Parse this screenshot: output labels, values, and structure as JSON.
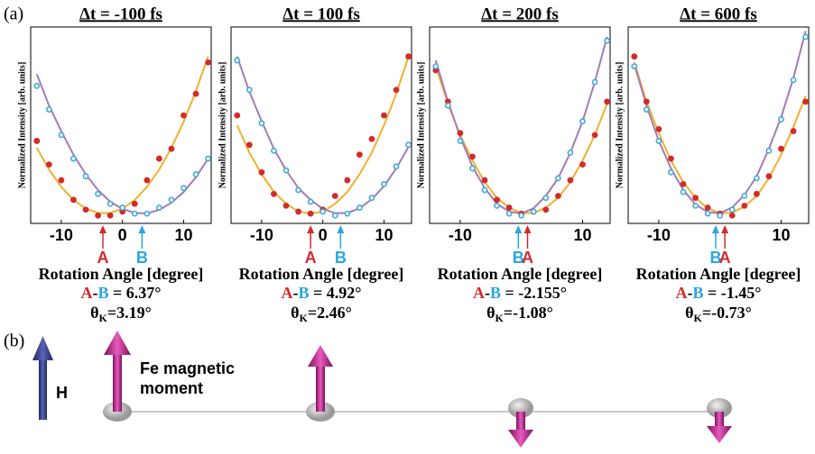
{
  "panel_label": "(a)",
  "chart_data": [
    {
      "type": "scatter",
      "title": "Δt = -100 fs",
      "x_label": "Rotation Angle [degree]",
      "y_label": "Normalized Intensity [arb. units]",
      "xlim": [
        -15,
        14.5
      ],
      "ylim": [
        0,
        1
      ],
      "xticks": [
        -10,
        0,
        10
      ],
      "x": [
        -14,
        -12,
        -10,
        -8,
        -6,
        -4,
        -2,
        0,
        2,
        4,
        6,
        8,
        10,
        12,
        14
      ],
      "series": [
        {
          "style": "line",
          "color": "#f0b030",
          "values": [
            0.385,
            0.274,
            0.186,
            0.119,
            0.075,
            0.053,
            0.053,
            0.075,
            0.119,
            0.186,
            0.274,
            0.385,
            0.518,
            0.673,
            0.85
          ]
        },
        {
          "style": "line",
          "color": "#a57bb5",
          "values": [
            0.76,
            0.6,
            0.47,
            0.35,
            0.25,
            0.17,
            0.11,
            0.074,
            0.053,
            0.051,
            0.069,
            0.105,
            0.16,
            0.235,
            0.33
          ]
        },
        {
          "style": "dot",
          "color": "#d42a2a",
          "values": [
            0.42,
            0.3,
            0.22,
            0.12,
            0.07,
            0.04,
            0.04,
            0.06,
            0.1,
            0.22,
            0.33,
            0.38,
            0.55,
            0.66,
            0.82
          ]
        },
        {
          "style": "circle",
          "color": "#3fa8dc",
          "values": [
            0.7,
            0.58,
            0.45,
            0.33,
            0.24,
            0.15,
            0.1,
            0.08,
            0.05,
            0.05,
            0.08,
            0.12,
            0.18,
            0.25,
            0.33
          ]
        }
      ],
      "markers": [
        {
          "label": "A",
          "x": -3.2,
          "color": "#d42a2a"
        },
        {
          "label": "B",
          "x": 3.2,
          "color": "#29a7df"
        }
      ],
      "difference": [
        "A",
        "-",
        "B",
        " = 6.37°"
      ],
      "kerr": {
        "symbol": "θ",
        "sub": "K",
        "value": "=3.19°"
      }
    },
    {
      "type": "scatter",
      "title": "Δt = 100 fs",
      "x_label": "Rotation Angle [degree]",
      "y_label": "Normalized Intensity [arb. units]",
      "xlim": [
        -15,
        14.5
      ],
      "ylim": [
        0,
        1
      ],
      "xticks": [
        -10,
        0,
        10
      ],
      "x": [
        -14,
        -12,
        -10,
        -8,
        -6,
        -4,
        -2,
        0,
        2,
        4,
        6,
        8,
        10,
        12,
        14
      ],
      "series": [
        {
          "style": "line",
          "color": "#f0b030",
          "values": [
            0.5,
            0.36,
            0.25,
            0.16,
            0.1,
            0.06,
            0.05,
            0.06,
            0.1,
            0.16,
            0.25,
            0.36,
            0.5,
            0.66,
            0.85
          ]
        },
        {
          "style": "line",
          "color": "#a57bb5",
          "values": [
            0.85,
            0.67,
            0.52,
            0.38,
            0.27,
            0.18,
            0.12,
            0.074,
            0.052,
            0.053,
            0.077,
            0.123,
            0.19,
            0.28,
            0.39
          ]
        },
        {
          "style": "dot",
          "color": "#d42a2a",
          "values": [
            0.55,
            0.4,
            0.26,
            0.15,
            0.09,
            0.06,
            0.05,
            0.07,
            0.14,
            0.22,
            0.35,
            0.43,
            0.55,
            0.68,
            0.85
          ]
        },
        {
          "style": "circle",
          "color": "#3fa8dc",
          "values": [
            0.83,
            0.68,
            0.51,
            0.37,
            0.27,
            0.17,
            0.11,
            0.06,
            0.04,
            0.05,
            0.08,
            0.13,
            0.2,
            0.29,
            0.4
          ]
        }
      ],
      "markers": [
        {
          "label": "A",
          "x": -2,
          "color": "#d42a2a"
        },
        {
          "label": "B",
          "x": 2.9,
          "color": "#29a7df"
        }
      ],
      "difference": [
        "A",
        "-",
        "B",
        " = 4.92°"
      ],
      "kerr": {
        "symbol": "θ",
        "sub": "K",
        "value": "=2.46°"
      }
    },
    {
      "type": "scatter",
      "title": "Δt = 200 fs",
      "x_label": "Rotation Angle [degree]",
      "y_label": "Normalized Intensity [arb. units]",
      "xlim": [
        -15,
        14.5
      ],
      "ylim": [
        0,
        1
      ],
      "xticks": [
        -10,
        10
      ],
      "x": [
        -14,
        -12,
        -10,
        -8,
        -6,
        -4,
        -2,
        0,
        2,
        4,
        6,
        8,
        10,
        12,
        14
      ],
      "series": [
        {
          "style": "line",
          "color": "#f0b030",
          "values": [
            0.8,
            0.61,
            0.45,
            0.32,
            0.21,
            0.13,
            0.08,
            0.053,
            0.053,
            0.08,
            0.13,
            0.21,
            0.32,
            0.45,
            0.61
          ]
        },
        {
          "style": "line",
          "color": "#a57bb5",
          "values": [
            0.83,
            0.62,
            0.44,
            0.29,
            0.18,
            0.1,
            0.06,
            0.05,
            0.077,
            0.14,
            0.23,
            0.36,
            0.52,
            0.72,
            0.95
          ]
        },
        {
          "style": "dot",
          "color": "#d42a2a",
          "values": [
            0.78,
            0.62,
            0.46,
            0.34,
            0.22,
            0.12,
            0.08,
            0.05,
            0.06,
            0.07,
            0.14,
            0.22,
            0.3,
            0.45,
            0.62
          ]
        },
        {
          "style": "circle",
          "color": "#3fa8dc",
          "values": [
            0.8,
            0.6,
            0.42,
            0.28,
            0.17,
            0.09,
            0.05,
            0.04,
            0.06,
            0.13,
            0.23,
            0.36,
            0.52,
            0.72,
            0.93
          ]
        }
      ],
      "markers": [
        {
          "label": "B",
          "x": -0.5,
          "color": "#29a7df"
        },
        {
          "label": "A",
          "x": 1,
          "color": "#d42a2a"
        }
      ],
      "difference": [
        "A",
        "-",
        "B",
        " = -2.155°"
      ],
      "kerr": {
        "symbol": "θ",
        "sub": "K",
        "value": "=-1.08°"
      }
    },
    {
      "type": "scatter",
      "title": "Δt = 600 fs",
      "x_label": "Rotation Angle [degree]",
      "y_label": "Normalized Intensity [arb. units]",
      "xlim": [
        -15,
        14.5
      ],
      "ylim": [
        0,
        1
      ],
      "xticks": [
        -10,
        10
      ],
      "x": [
        -14,
        -12,
        -10,
        -8,
        -6,
        -4,
        -2,
        0,
        2,
        4,
        6,
        8,
        10,
        12,
        14
      ],
      "series": [
        {
          "style": "line",
          "color": "#f0b030",
          "values": [
            0.82,
            0.62,
            0.46,
            0.32,
            0.21,
            0.13,
            0.077,
            0.052,
            0.055,
            0.086,
            0.14,
            0.23,
            0.35,
            0.49,
            0.65
          ]
        },
        {
          "style": "line",
          "color": "#a57bb5",
          "values": [
            0.81,
            0.6,
            0.42,
            0.28,
            0.17,
            0.097,
            0.057,
            0.052,
            0.081,
            0.145,
            0.24,
            0.38,
            0.54,
            0.74,
            0.98
          ]
        },
        {
          "style": "dot",
          "color": "#d42a2a",
          "values": [
            0.85,
            0.62,
            0.48,
            0.33,
            0.2,
            0.13,
            0.08,
            0.05,
            0.04,
            0.09,
            0.15,
            0.24,
            0.38,
            0.47,
            0.62
          ]
        },
        {
          "style": "circle",
          "color": "#3fa8dc",
          "values": [
            0.8,
            0.58,
            0.42,
            0.26,
            0.16,
            0.09,
            0.05,
            0.04,
            0.07,
            0.14,
            0.23,
            0.37,
            0.53,
            0.73,
            0.95
          ]
        }
      ],
      "markers": [
        {
          "label": "B",
          "x": -0.7,
          "color": "#29a7df"
        },
        {
          "label": "A",
          "x": 0.8,
          "color": "#d42a2a"
        }
      ],
      "difference": [
        "A",
        "-",
        "B",
        " = -1.45°"
      ],
      "kerr": {
        "symbol": "θ",
        "sub": "K",
        "value": "=-0.73°"
      }
    }
  ],
  "diagram": {
    "label": "(b)",
    "field_label": "H",
    "moment_label": [
      "Fe magnetic",
      "moment"
    ]
  }
}
